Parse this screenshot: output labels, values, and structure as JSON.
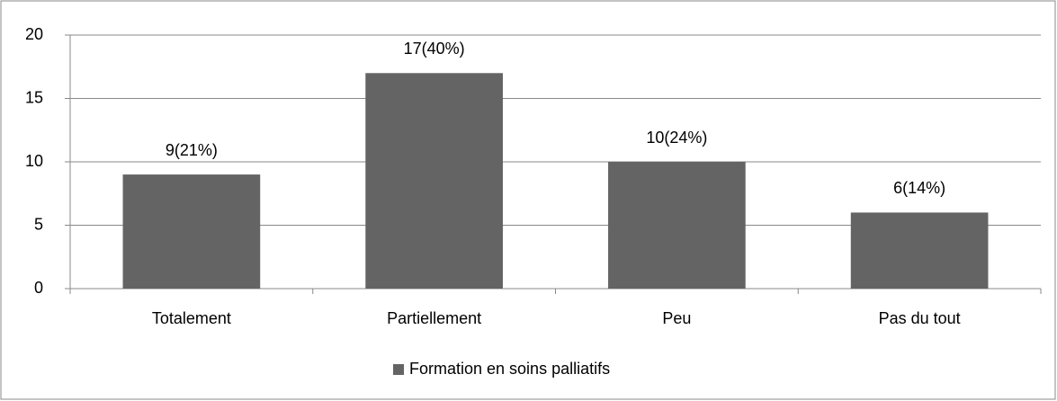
{
  "chart_data": {
    "type": "bar",
    "categories": [
      "Totalement",
      "Partiellement",
      "Peu",
      "Pas du tout"
    ],
    "series": [
      {
        "name": "Formation en soins palliatifs",
        "color": "#646464",
        "values": [
          9,
          17,
          10,
          6
        ],
        "value_labels": [
          "9(21%)",
          "17(40%)",
          "10(24%)",
          "6(14%)"
        ]
      }
    ],
    "ylim": [
      0,
      20
    ],
    "yticks": [
      0,
      5,
      10,
      15,
      20
    ],
    "grid": true,
    "legend": "bottom"
  }
}
